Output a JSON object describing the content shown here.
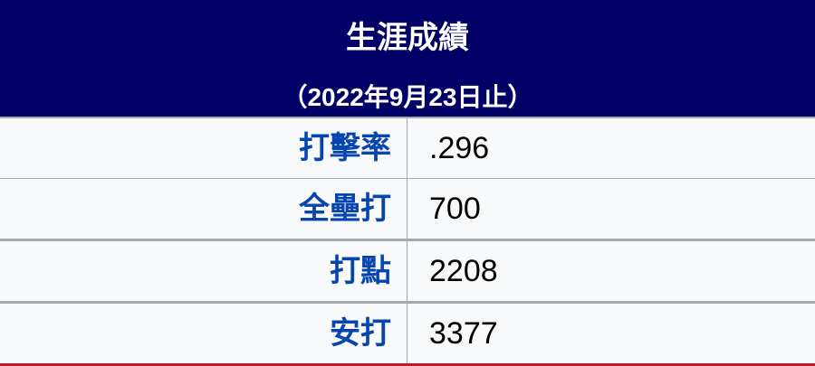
{
  "header": {
    "title": "生涯成績",
    "subtitle": "（2022年9月23日止）",
    "bg_color": "#000066"
  },
  "rows": [
    {
      "label": "打擊率",
      "value": ".296"
    },
    {
      "label": "全壘打",
      "value": "700"
    },
    {
      "label": "打點",
      "value": "2208"
    },
    {
      "label": "安打",
      "value": "3377"
    }
  ]
}
